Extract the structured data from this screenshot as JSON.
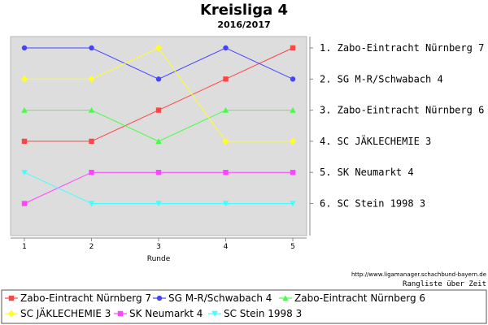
{
  "chart_data": {
    "type": "line",
    "title": "Kreisliga 4",
    "subtitle": "2016/2017",
    "xlabel": "Runde",
    "ylabel": "",
    "x": [
      1,
      2,
      3,
      4,
      5
    ],
    "ylim": [
      1,
      6
    ],
    "y_inverted": true,
    "grid": false,
    "legend_position": "bottom",
    "series": [
      {
        "name": "Zabo-Eintracht Nürnberg 7",
        "values": [
          4,
          4,
          3,
          2,
          1
        ],
        "color": "#ff4444",
        "marker": "square"
      },
      {
        "name": "SG M-R/Schwabach 4",
        "values": [
          1,
          1,
          2,
          1,
          2
        ],
        "color": "#4444ff",
        "marker": "circle"
      },
      {
        "name": "Zabo-Eintracht Nürnberg 6",
        "values": [
          3,
          3,
          4,
          3,
          3
        ],
        "color": "#44ff44",
        "marker": "triangle-up"
      },
      {
        "name": "SC JÄKLECHEMIE 3",
        "values": [
          2,
          2,
          1,
          4,
          4
        ],
        "color": "#ffff22",
        "marker": "diamond"
      },
      {
        "name": "SK Neumarkt 4",
        "values": [
          6,
          5,
          5,
          5,
          5
        ],
        "color": "#ff44ff",
        "marker": "square"
      },
      {
        "name": "SC Stein 1998 3",
        "values": [
          5,
          6,
          6,
          6,
          6
        ],
        "color": "#44ffff",
        "marker": "triangle-down"
      }
    ],
    "final_ranking": [
      "1. Zabo-Eintracht Nürnberg 7",
      "2. SG M-R/Schwabach 4",
      "3. Zabo-Eintracht Nürnberg 6",
      "4. SC JÄKLECHEMIE 3",
      "5. SK Neumarkt 4",
      "6. SC Stein 1998 3"
    ],
    "source_url": "http://www.ligamanager.schachbund-bayern.de",
    "caption": "Rangliste über Zeit"
  }
}
